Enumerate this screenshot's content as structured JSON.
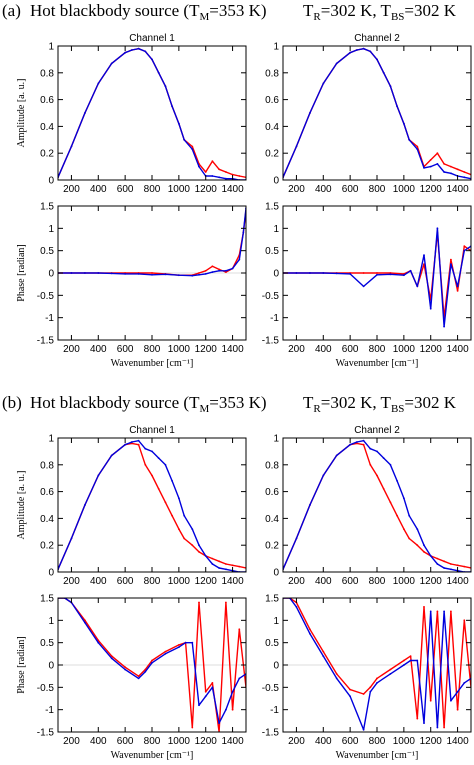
{
  "figure": {
    "sections": [
      {
        "label": "(a)",
        "title_left": {
          "main": "Hot blackbody source (T",
          "sub": "M",
          "rest": "=353 K)"
        },
        "title_right": {
          "p1": "T",
          "s1": "R",
          "p2": "=302 K, T",
          "s2": "BS",
          "p3": "=302 K"
        }
      },
      {
        "label": "(b)",
        "title_left": {
          "main": "Hot blackbody source (T",
          "sub": "M",
          "rest": "=353 K)"
        },
        "title_right": {
          "p1": "T",
          "s1": "R",
          "p2": "=302 K, T",
          "s2": "BS",
          "p3": "=302 K"
        }
      }
    ]
  },
  "colors": {
    "measured": "#ff0000",
    "model": "#0000dd",
    "axis": "#000000"
  },
  "chart_data": [
    {
      "type": "line",
      "panel": "a-amp-ch1",
      "title": "Channel 1",
      "xlabel": "",
      "ylabel": "Amplitude [a. u.]",
      "xlim": [
        100,
        1500
      ],
      "ylim": [
        0,
        1
      ],
      "xticks": [
        "200",
        "400",
        "600",
        "800",
        "1000",
        "1200",
        "1400"
      ],
      "yticks": [
        "0",
        "0.2",
        "0.4",
        "0.6",
        "0.8",
        "1"
      ],
      "series": [
        {
          "x": [
            100,
            200,
            300,
            400,
            500,
            600,
            650,
            700,
            750,
            800,
            850,
            900,
            950,
            1000,
            1040,
            1100,
            1150,
            1200,
            1250,
            1300,
            1350,
            1400,
            1450,
            1500
          ],
          "y": [
            0.02,
            0.25,
            0.5,
            0.72,
            0.87,
            0.95,
            0.97,
            0.98,
            0.96,
            0.9,
            0.8,
            0.7,
            0.55,
            0.42,
            0.3,
            0.25,
            0.12,
            0.06,
            0.14,
            0.08,
            0.06,
            0.04,
            0.03,
            0.02
          ]
        },
        {
          "x": [
            100,
            200,
            300,
            400,
            500,
            600,
            650,
            700,
            750,
            800,
            850,
            900,
            950,
            1000,
            1040,
            1100,
            1150,
            1200,
            1250,
            1300,
            1350,
            1400,
            1450,
            1500
          ],
          "y": [
            0.02,
            0.25,
            0.5,
            0.72,
            0.87,
            0.95,
            0.97,
            0.98,
            0.96,
            0.9,
            0.8,
            0.7,
            0.55,
            0.42,
            0.3,
            0.23,
            0.1,
            0.03,
            0.03,
            0.02,
            0.01,
            0.01,
            0.0,
            0.0
          ]
        }
      ]
    },
    {
      "type": "line",
      "panel": "a-amp-ch2",
      "title": "Channel 2",
      "xlabel": "",
      "ylabel": "",
      "xlim": [
        100,
        1500
      ],
      "ylim": [
        0,
        1
      ],
      "xticks": [
        "200",
        "400",
        "600",
        "800",
        "1000",
        "1200",
        "1400"
      ],
      "yticks": [
        "0",
        "0.2",
        "0.4",
        "0.6",
        "0.8",
        "1"
      ],
      "series": [
        {
          "x": [
            100,
            200,
            300,
            400,
            500,
            600,
            650,
            700,
            750,
            800,
            850,
            900,
            950,
            1000,
            1040,
            1100,
            1150,
            1200,
            1250,
            1300,
            1350,
            1400,
            1450,
            1500
          ],
          "y": [
            0.02,
            0.25,
            0.5,
            0.72,
            0.87,
            0.95,
            0.97,
            0.98,
            0.96,
            0.9,
            0.8,
            0.7,
            0.55,
            0.42,
            0.3,
            0.25,
            0.1,
            0.15,
            0.2,
            0.12,
            0.1,
            0.08,
            0.06,
            0.04
          ]
        },
        {
          "x": [
            100,
            200,
            300,
            400,
            500,
            600,
            650,
            700,
            750,
            800,
            850,
            900,
            950,
            1000,
            1040,
            1100,
            1150,
            1200,
            1250,
            1300,
            1350,
            1400,
            1450,
            1500
          ],
          "y": [
            0.02,
            0.25,
            0.5,
            0.72,
            0.87,
            0.95,
            0.97,
            0.98,
            0.96,
            0.9,
            0.8,
            0.7,
            0.55,
            0.42,
            0.3,
            0.23,
            0.09,
            0.1,
            0.12,
            0.06,
            0.05,
            0.03,
            0.02,
            0.01
          ]
        }
      ]
    },
    {
      "type": "line",
      "panel": "a-phase-ch1",
      "title": "",
      "xlabel": "Wavenumber [cm⁻¹]",
      "ylabel": "Phase [radian]",
      "xlim": [
        100,
        1500
      ],
      "ylim": [
        -1.5,
        1.5
      ],
      "xticks": [
        "200",
        "400",
        "600",
        "800",
        "1000",
        "1200",
        "1400"
      ],
      "yticks": [
        "-1.5",
        "-1",
        "-0.5",
        "0",
        "0.5",
        "1",
        "1.5"
      ],
      "series": [
        {
          "x": [
            100,
            200,
            300,
            400,
            500,
            600,
            700,
            800,
            900,
            1000,
            1100,
            1150,
            1200,
            1250,
            1300,
            1350,
            1400,
            1450,
            1480,
            1500
          ],
          "y": [
            0.0,
            0.0,
            0.0,
            0.0,
            0.0,
            0.0,
            0.0,
            0.0,
            -0.02,
            -0.05,
            -0.05,
            0.0,
            0.05,
            0.15,
            0.08,
            0.02,
            0.1,
            0.4,
            0.9,
            1.4
          ]
        },
        {
          "x": [
            100,
            200,
            300,
            400,
            500,
            600,
            700,
            800,
            900,
            1000,
            1100,
            1150,
            1200,
            1250,
            1300,
            1350,
            1400,
            1450,
            1480,
            1500
          ],
          "y": [
            0.0,
            0.0,
            0.0,
            0.0,
            -0.01,
            -0.02,
            -0.02,
            -0.04,
            -0.03,
            -0.05,
            -0.06,
            -0.04,
            -0.02,
            0.02,
            0.05,
            0.05,
            0.1,
            0.3,
            0.9,
            1.45
          ]
        }
      ]
    },
    {
      "type": "line",
      "panel": "a-phase-ch2",
      "title": "",
      "xlabel": "Wavenumber [cm⁻¹]",
      "ylabel": "",
      "xlim": [
        100,
        1500
      ],
      "ylim": [
        -1.5,
        1.5
      ],
      "xticks": [
        "200",
        "400",
        "600",
        "800",
        "1000",
        "1200",
        "1400"
      ],
      "yticks": [
        "-1.5",
        "-1",
        "-0.5",
        "0",
        "0.5",
        "1",
        "1.5"
      ],
      "series": [
        {
          "x": [
            100,
            200,
            300,
            400,
            500,
            600,
            700,
            800,
            900,
            1000,
            1050,
            1100,
            1150,
            1200,
            1250,
            1300,
            1350,
            1400,
            1450,
            1500
          ],
          "y": [
            0.0,
            0.0,
            0.0,
            0.0,
            0.0,
            0.0,
            0.0,
            0.0,
            0.0,
            -0.02,
            0.05,
            -0.3,
            0.2,
            -0.6,
            0.9,
            -1.0,
            0.3,
            -0.4,
            0.6,
            0.5
          ]
        },
        {
          "x": [
            100,
            200,
            300,
            400,
            500,
            600,
            700,
            800,
            900,
            1000,
            1050,
            1100,
            1150,
            1200,
            1250,
            1300,
            1350,
            1400,
            1450,
            1500
          ],
          "y": [
            0.0,
            0.0,
            0.0,
            0.0,
            -0.01,
            -0.02,
            -0.3,
            -0.04,
            -0.03,
            -0.05,
            0.05,
            -0.3,
            0.4,
            -0.8,
            1.0,
            -1.2,
            0.2,
            -0.3,
            0.5,
            0.6
          ]
        }
      ]
    },
    {
      "type": "line",
      "panel": "b-amp-ch1",
      "title": "Channel 1",
      "xlabel": "",
      "ylabel": "Amplitude [a. u.]",
      "xlim": [
        100,
        1500
      ],
      "ylim": [
        0,
        1
      ],
      "xticks": [
        "200",
        "400",
        "600",
        "800",
        "1000",
        "1200",
        "1400"
      ],
      "yticks": [
        "0",
        "0.2",
        "0.4",
        "0.6",
        "0.8",
        "1"
      ],
      "series": [
        {
          "x": [
            100,
            200,
            300,
            400,
            500,
            600,
            650,
            700,
            750,
            800,
            850,
            900,
            950,
            1000,
            1040,
            1100,
            1150,
            1200,
            1250,
            1300,
            1350,
            1400,
            1450,
            1500
          ],
          "y": [
            0.02,
            0.25,
            0.5,
            0.72,
            0.87,
            0.95,
            0.96,
            0.95,
            0.8,
            0.72,
            0.62,
            0.52,
            0.42,
            0.32,
            0.25,
            0.2,
            0.15,
            0.12,
            0.1,
            0.08,
            0.06,
            0.05,
            0.04,
            0.03
          ]
        },
        {
          "x": [
            100,
            200,
            300,
            400,
            500,
            600,
            650,
            700,
            750,
            800,
            850,
            900,
            950,
            1000,
            1040,
            1100,
            1150,
            1200,
            1250,
            1300,
            1350,
            1400,
            1450,
            1500
          ],
          "y": [
            0.02,
            0.25,
            0.5,
            0.72,
            0.87,
            0.95,
            0.97,
            0.98,
            0.92,
            0.9,
            0.85,
            0.8,
            0.68,
            0.55,
            0.42,
            0.32,
            0.2,
            0.12,
            0.06,
            0.03,
            0.02,
            0.01,
            0.0,
            0.0
          ]
        }
      ]
    },
    {
      "type": "line",
      "panel": "b-amp-ch2",
      "title": "Channel 2",
      "xlabel": "",
      "ylabel": "",
      "xlim": [
        100,
        1500
      ],
      "ylim": [
        0,
        1
      ],
      "xticks": [
        "200",
        "400",
        "600",
        "800",
        "1000",
        "1200",
        "1400"
      ],
      "yticks": [
        "0",
        "0.2",
        "0.4",
        "0.6",
        "0.8",
        "1"
      ],
      "series": [
        {
          "x": [
            100,
            200,
            300,
            400,
            500,
            600,
            650,
            700,
            750,
            800,
            850,
            900,
            950,
            1000,
            1040,
            1100,
            1150,
            1200,
            1250,
            1300,
            1350,
            1400,
            1450,
            1500
          ],
          "y": [
            0.02,
            0.25,
            0.5,
            0.72,
            0.87,
            0.95,
            0.96,
            0.95,
            0.8,
            0.72,
            0.62,
            0.52,
            0.42,
            0.32,
            0.25,
            0.2,
            0.15,
            0.12,
            0.1,
            0.08,
            0.06,
            0.05,
            0.04,
            0.03
          ]
        },
        {
          "x": [
            100,
            200,
            300,
            400,
            500,
            600,
            650,
            700,
            750,
            800,
            850,
            900,
            950,
            1000,
            1040,
            1100,
            1150,
            1200,
            1250,
            1300,
            1350,
            1400,
            1450,
            1500
          ],
          "y": [
            0.02,
            0.25,
            0.5,
            0.72,
            0.87,
            0.95,
            0.97,
            0.98,
            0.92,
            0.9,
            0.85,
            0.8,
            0.68,
            0.55,
            0.42,
            0.32,
            0.2,
            0.12,
            0.06,
            0.03,
            0.02,
            0.01,
            0.0,
            0.0
          ]
        }
      ]
    },
    {
      "type": "line",
      "panel": "b-phase-ch1",
      "title": "",
      "xlabel": "Wavenumber [cm⁻¹]",
      "ylabel": "Phase [radian]",
      "xlim": [
        100,
        1500
      ],
      "ylim": [
        -1.5,
        1.5
      ],
      "xticks": [
        "200",
        "400",
        "600",
        "800",
        "1000",
        "1200",
        "1400"
      ],
      "yticks": [
        "-1.5",
        "-1",
        "-0.5",
        "0",
        "0.5",
        "1",
        "1.5"
      ],
      "series": [
        {
          "x": [
            100,
            150,
            200,
            300,
            400,
            500,
            600,
            700,
            750,
            800,
            900,
            1000,
            1050,
            1100,
            1150,
            1200,
            1250,
            1300,
            1350,
            1400,
            1450,
            1500
          ],
          "y": [
            1.5,
            1.5,
            1.4,
            1.0,
            0.55,
            0.2,
            -0.05,
            -0.25,
            -0.1,
            0.1,
            0.3,
            0.45,
            0.5,
            -1.4,
            1.4,
            -0.6,
            -0.4,
            -1.5,
            1.4,
            -1.0,
            0.8,
            -0.5
          ]
        },
        {
          "x": [
            100,
            150,
            200,
            300,
            400,
            500,
            600,
            700,
            750,
            800,
            900,
            1000,
            1050,
            1100,
            1150,
            1200,
            1250,
            1300,
            1350,
            1400,
            1450,
            1500
          ],
          "y": [
            1.5,
            1.5,
            1.4,
            0.95,
            0.5,
            0.15,
            -0.1,
            -0.3,
            -0.15,
            0.05,
            0.25,
            0.4,
            0.5,
            0.5,
            -0.9,
            -0.7,
            -0.5,
            -1.3,
            -1.0,
            -0.6,
            -0.3,
            -0.2
          ]
        }
      ]
    },
    {
      "type": "line",
      "panel": "b-phase-ch2",
      "title": "",
      "xlabel": "Wavenumber [cm⁻¹]",
      "ylabel": "",
      "xlim": [
        100,
        1500
      ],
      "ylim": [
        -1.5,
        1.5
      ],
      "xticks": [
        "200",
        "400",
        "600",
        "800",
        "1000",
        "1200",
        "1400"
      ],
      "yticks": [
        "-1.5",
        "-1",
        "-0.5",
        "0",
        "0.5",
        "1",
        "1.5"
      ],
      "series": [
        {
          "x": [
            100,
            150,
            200,
            300,
            400,
            500,
            600,
            700,
            750,
            800,
            900,
            1000,
            1050,
            1100,
            1150,
            1200,
            1250,
            1300,
            1350,
            1400,
            1450,
            1500
          ],
          "y": [
            1.5,
            1.5,
            1.4,
            0.8,
            0.3,
            -0.2,
            -0.55,
            -0.65,
            -0.5,
            -0.3,
            -0.1,
            0.1,
            0.2,
            -1.2,
            1.3,
            -0.8,
            1.2,
            -1.4,
            1.2,
            -1.0,
            1.0,
            -0.5
          ]
        },
        {
          "x": [
            100,
            150,
            200,
            300,
            400,
            500,
            600,
            700,
            750,
            800,
            900,
            1000,
            1050,
            1100,
            1150,
            1200,
            1250,
            1300,
            1350,
            1400,
            1450,
            1500
          ],
          "y": [
            1.5,
            1.5,
            1.3,
            0.7,
            0.2,
            -0.3,
            -0.7,
            -1.45,
            -0.6,
            -0.4,
            -0.2,
            0.0,
            0.1,
            0.1,
            -1.3,
            1.2,
            -1.4,
            1.2,
            -0.8,
            -0.6,
            -0.4,
            -0.3
          ]
        }
      ]
    }
  ]
}
